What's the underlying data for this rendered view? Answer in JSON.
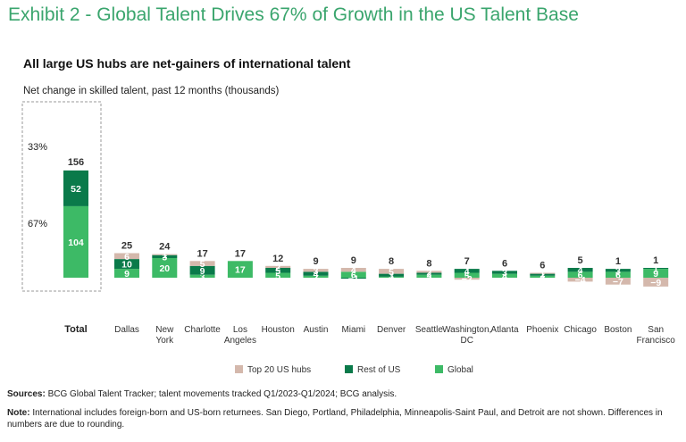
{
  "header": {
    "exhibit_title": "Exhibit 2 - Global Talent Drives 67% of Growth in the US Talent Base",
    "subtitle": "All large US hubs are net-gainers of international talent",
    "axis_note": "Net change in skilled talent, past 12 months (thousands)"
  },
  "colors": {
    "top20": "#d4b8ac",
    "rest": "#0a7a4a",
    "global": "#3dba66",
    "total_box_border": "#999999",
    "title": "#3aa56d"
  },
  "chart_data": {
    "type": "bar",
    "stacked": true,
    "unit": "thousands",
    "total": {
      "label": "Total",
      "value": 156,
      "global": 104,
      "rest_of_us": 52,
      "global_share_label": "67%",
      "rest_share_label": "33%"
    },
    "categories": [
      "Dallas",
      "New\nYork",
      "Charlotte",
      "Los\nAngeles",
      "Houston",
      "Austin",
      "Miami",
      "Denver",
      "Seattle",
      "Washington,\nDC",
      "Atlanta",
      "Phoenix",
      "Chicago",
      "Boston",
      "San\nFrancisco"
    ],
    "series": [
      {
        "name": "Global",
        "values": [
          9,
          20,
          3,
          17,
          5,
          2,
          6,
          1,
          3,
          5,
          4,
          2,
          6,
          6,
          9
        ]
      },
      {
        "name": "Rest of US",
        "values": [
          10,
          3,
          9,
          0,
          5,
          4,
          -1,
          3,
          2,
          4,
          3,
          2,
          4,
          3,
          1
        ]
      },
      {
        "name": "Top 20 US hubs",
        "values": [
          6,
          1,
          5,
          0,
          2,
          3,
          4,
          5,
          2,
          -2,
          0,
          1,
          -4,
          -7,
          -9
        ]
      }
    ],
    "totals": [
      25,
      24,
      17,
      17,
      12,
      9,
      9,
      8,
      8,
      7,
      6,
      6,
      5,
      1,
      1
    ],
    "legend": [
      "Top 20 US hubs",
      "Rest of US",
      "Global"
    ],
    "legend_position": "bottom"
  },
  "footer": {
    "sources_label": "Sources:",
    "sources_text": " BCG Global Talent Tracker; talent movements tracked Q1/2023-Q1/2024; BCG analysis.",
    "note_label": "Note:",
    "note_text": " International includes foreign-born and US-born returnees. San Diego, Portland, Philadelphia, Minneapolis-Saint Paul, and Detroit are not shown. Differences in numbers are due to rounding."
  }
}
